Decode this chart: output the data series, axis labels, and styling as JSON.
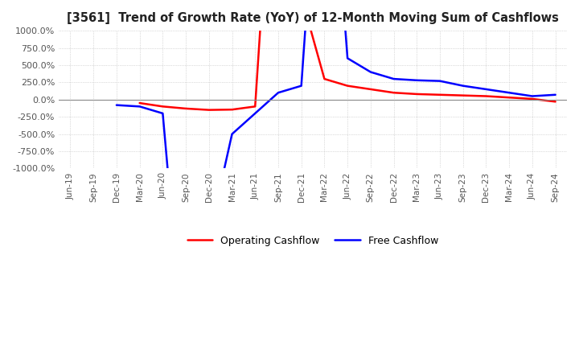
{
  "title": "[3561]  Trend of Growth Rate (YoY) of 12-Month Moving Sum of Cashflows",
  "ylim": [
    -1000,
    1000
  ],
  "yticks": [
    1000.0,
    750.0,
    500.0,
    250.0,
    0.0,
    -250.0,
    -500.0,
    -750.0,
    -1000.0
  ],
  "operating_color": "#ff0000",
  "free_color": "#0000ff",
  "legend_labels": [
    "Operating Cashflow",
    "Free Cashflow"
  ],
  "background_color": "#ffffff",
  "grid_color": "#bbbbbb",
  "x_labels": [
    "Jun-19",
    "Sep-19",
    "Dec-19",
    "Mar-20",
    "Jun-20",
    "Sep-20",
    "Dec-20",
    "Mar-21",
    "Jun-21",
    "Sep-21",
    "Dec-21",
    "Mar-22",
    "Jun-22",
    "Sep-22",
    "Dec-22",
    "Mar-23",
    "Jun-23",
    "Sep-23",
    "Dec-23",
    "Mar-24",
    "Jun-24",
    "Sep-24"
  ],
  "operating_cashflow": [
    null,
    null,
    null,
    -50.0,
    -100.0,
    -130.0,
    -150.0,
    -145.0,
    -100.0,
    5000.0,
    1500.0,
    300.0,
    200.0,
    150.0,
    100.0,
    80.0,
    70.0,
    60.0,
    50.0,
    30.0,
    10.0,
    -30.0
  ],
  "free_cashflow": [
    null,
    null,
    -80.0,
    -100.0,
    -200.0,
    -4000.0,
    -2000.0,
    -500.0,
    -200.0,
    100.0,
    200.0,
    5000.0,
    600.0,
    400.0,
    300.0,
    280.0,
    270.0,
    200.0,
    150.0,
    100.0,
    50.0,
    70.0
  ]
}
